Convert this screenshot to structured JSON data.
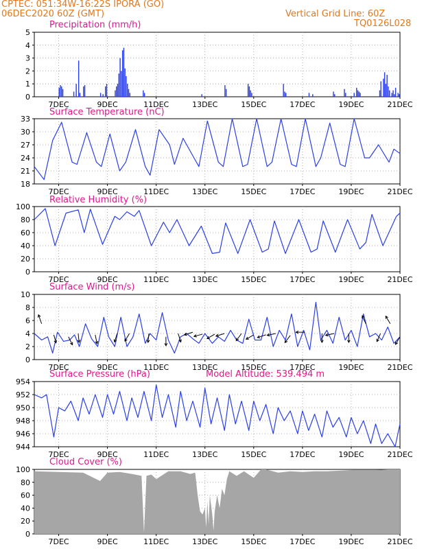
{
  "header": {
    "line1_left": "CPTEC:   051:34W-16:22S   IPORA (GO)",
    "line2_left": "06DEC2020 60Z (GMT)",
    "line1_right": "Vertical Grid Line: 60Z",
    "line2_right": "TQ0126L028"
  },
  "colors": {
    "header": "#e0781e",
    "title": "#e0188c",
    "series": "#2a3ee8",
    "cloud": "#a6a6a6",
    "grid": "#9a9a9a"
  },
  "x_axis": {
    "range_days": [
      6.0,
      21.0
    ],
    "tick_days": [
      7,
      9,
      11,
      13,
      15,
      17,
      19,
      21
    ],
    "tick_labels": [
      "7DEC",
      "9DEC",
      "11DEC",
      "13DEC",
      "15DEC",
      "17DEC",
      "19DEC",
      "21DEC"
    ]
  },
  "chart_data": [
    {
      "id": "precip",
      "type": "bar",
      "title": "Precipitation (mm/h)",
      "ylim": [
        0,
        5
      ],
      "yticks": [
        0,
        1,
        2,
        3,
        4,
        5
      ],
      "grid": true,
      "bars": [
        [
          7.02,
          0.7
        ],
        [
          7.07,
          0.9
        ],
        [
          7.12,
          0.8
        ],
        [
          7.17,
          0.6
        ],
        [
          7.62,
          0.4
        ],
        [
          7.72,
          1.0
        ],
        [
          7.82,
          2.8
        ],
        [
          7.87,
          0.3
        ],
        [
          8.02,
          0.8
        ],
        [
          8.07,
          0.9
        ],
        [
          8.72,
          0.3
        ],
        [
          8.82,
          0.2
        ],
        [
          8.92,
          0.8
        ],
        [
          8.97,
          1.0
        ],
        [
          9.32,
          0.5
        ],
        [
          9.37,
          0.8
        ],
        [
          9.42,
          1.0
        ],
        [
          9.47,
          1.8
        ],
        [
          9.52,
          3.0
        ],
        [
          9.57,
          2.0
        ],
        [
          9.62,
          3.6
        ],
        [
          9.67,
          3.8
        ],
        [
          9.72,
          2.2
        ],
        [
          9.77,
          1.6
        ],
        [
          9.82,
          1.0
        ],
        [
          9.87,
          0.6
        ],
        [
          9.92,
          0.3
        ],
        [
          10.47,
          0.5
        ],
        [
          10.52,
          0.3
        ],
        [
          12.87,
          0.2
        ],
        [
          13.82,
          0.9
        ],
        [
          13.87,
          0.6
        ],
        [
          14.77,
          1.0
        ],
        [
          14.82,
          0.8
        ],
        [
          14.87,
          0.5
        ],
        [
          14.92,
          0.3
        ],
        [
          16.22,
          1.0
        ],
        [
          16.27,
          0.4
        ],
        [
          16.32,
          0.3
        ],
        [
          17.27,
          0.3
        ],
        [
          17.42,
          0.2
        ],
        [
          18.27,
          0.4
        ],
        [
          18.32,
          0.2
        ],
        [
          18.72,
          0.6
        ],
        [
          18.77,
          0.3
        ],
        [
          19.12,
          0.3
        ],
        [
          19.22,
          0.7
        ],
        [
          19.27,
          0.5
        ],
        [
          19.32,
          0.4
        ],
        [
          19.37,
          0.3
        ],
        [
          20.17,
          0.5
        ],
        [
          20.22,
          1.2
        ],
        [
          20.32,
          1.4
        ],
        [
          20.37,
          1.9
        ],
        [
          20.42,
          1.0
        ],
        [
          20.47,
          1.7
        ],
        [
          20.52,
          0.8
        ],
        [
          20.57,
          0.5
        ],
        [
          20.67,
          0.3
        ],
        [
          20.72,
          0.5
        ],
        [
          20.77,
          0.2
        ],
        [
          20.82,
          0.7
        ],
        [
          20.92,
          0.3
        ],
        [
          20.97,
          0.2
        ]
      ]
    },
    {
      "id": "temp",
      "type": "line",
      "title": "Surface Temperature (nC)",
      "ylim": [
        18,
        33
      ],
      "yticks": [
        18,
        21,
        24,
        27,
        30,
        33
      ],
      "grid": true,
      "x": [
        6.0,
        6.4,
        6.75,
        7.12,
        7.55,
        7.75,
        8.15,
        8.55,
        8.75,
        9.1,
        9.5,
        9.75,
        10.15,
        10.55,
        10.75,
        11.12,
        11.55,
        11.75,
        12.1,
        12.55,
        12.75,
        13.1,
        13.55,
        13.75,
        14.12,
        14.55,
        14.75,
        15.12,
        15.55,
        15.75,
        16.12,
        16.55,
        16.75,
        17.12,
        17.55,
        17.75,
        18.12,
        18.55,
        18.75,
        19.12,
        19.55,
        19.75,
        20.12,
        20.55,
        20.75,
        21.0
      ],
      "y": [
        22,
        19.0,
        28,
        32.2,
        23,
        22.5,
        29.8,
        23,
        22,
        29.5,
        21,
        23,
        30.5,
        22,
        20,
        30.5,
        27,
        22.5,
        28.5,
        24,
        22,
        32.5,
        23,
        22,
        33,
        22,
        22.5,
        33,
        22,
        23,
        33,
        22.5,
        22,
        33,
        22,
        24,
        32,
        22.5,
        22,
        33,
        24,
        24,
        27,
        23,
        26,
        25
      ]
    },
    {
      "id": "rh",
      "type": "line",
      "title": "Relative Humidity (%)",
      "ylim": [
        0,
        100
      ],
      "yticks": [
        0,
        20,
        40,
        60,
        80,
        100
      ],
      "grid": true,
      "x": [
        6.0,
        6.45,
        6.85,
        7.3,
        7.8,
        8.05,
        8.3,
        8.8,
        9.3,
        9.5,
        9.8,
        10.1,
        10.3,
        10.8,
        11.3,
        11.55,
        11.85,
        12.35,
        12.85,
        13.3,
        13.6,
        13.85,
        14.35,
        14.85,
        15.35,
        15.6,
        15.85,
        16.3,
        16.85,
        17.35,
        17.6,
        17.85,
        18.35,
        18.85,
        19.35,
        19.6,
        19.85,
        20.3,
        20.85,
        21.0
      ],
      "y": [
        80,
        97,
        40,
        90,
        95,
        60,
        96,
        42,
        85,
        80,
        92,
        85,
        94,
        40,
        76,
        60,
        80,
        40,
        70,
        28,
        30,
        75,
        28,
        80,
        30,
        35,
        78,
        28,
        80,
        30,
        35,
        78,
        30,
        80,
        35,
        45,
        88,
        40,
        85,
        90
      ]
    },
    {
      "id": "wind",
      "type": "line",
      "title": "Surface Wind (m/s)",
      "ylim": [
        0,
        10
      ],
      "yticks": [
        0,
        2,
        4,
        6,
        8,
        10
      ],
      "grid": true,
      "x": [
        6.0,
        6.3,
        6.55,
        6.75,
        6.95,
        7.2,
        7.45,
        7.65,
        7.85,
        8.1,
        8.35,
        8.6,
        8.85,
        9.05,
        9.3,
        9.55,
        9.8,
        10.05,
        10.3,
        10.55,
        10.75,
        11.0,
        11.25,
        11.5,
        11.75,
        12.0,
        12.25,
        12.5,
        12.75,
        13.0,
        13.3,
        13.55,
        13.8,
        14.05,
        14.3,
        14.55,
        14.8,
        15.05,
        15.3,
        15.55,
        15.8,
        16.05,
        16.3,
        16.55,
        16.8,
        17.05,
        17.3,
        17.55,
        17.75,
        18.0,
        18.25,
        18.5,
        18.75,
        19.0,
        19.25,
        19.5,
        19.75,
        20.0,
        20.25,
        20.5,
        20.75,
        21.0
      ],
      "y": [
        4,
        3,
        3.5,
        1.0,
        4.2,
        2.8,
        3.0,
        3.8,
        2.0,
        5.5,
        3.2,
        2.0,
        6.5,
        3.5,
        2.0,
        6.5,
        2.0,
        3.5,
        7.0,
        2.5,
        4.0,
        3.0,
        7.2,
        3.0,
        1.0,
        3.5,
        4.0,
        3.2,
        2.5,
        4.0,
        2.5,
        3.5,
        2.8,
        4.5,
        3.0,
        2.5,
        6.2,
        3.0,
        3.0,
        6.5,
        2.0,
        4.5,
        3.0,
        7.0,
        2.0,
        4.5,
        1.5,
        8.8,
        3.0,
        4.5,
        2.5,
        6.5,
        3.0,
        4.5,
        2.0,
        7.0,
        3.5,
        4.0,
        3.0,
        5.0,
        2.5,
        3.5
      ]
    },
    {
      "id": "press",
      "type": "line",
      "title": "Surface Pressure (hPa)",
      "annotation": "Model Altitude: 539.494 m",
      "ylim": [
        944,
        954
      ],
      "yticks": [
        944,
        946,
        948,
        950,
        952,
        954
      ],
      "grid": true,
      "x": [
        6.0,
        6.3,
        6.5,
        6.8,
        7.0,
        7.25,
        7.5,
        7.8,
        8.0,
        8.25,
        8.5,
        8.8,
        9.0,
        9.25,
        9.5,
        9.8,
        10.0,
        10.25,
        10.5,
        10.8,
        11.0,
        11.25,
        11.5,
        11.8,
        12.0,
        12.25,
        12.5,
        12.8,
        13.0,
        13.25,
        13.5,
        13.8,
        14.0,
        14.25,
        14.5,
        14.8,
        15.0,
        15.25,
        15.5,
        15.8,
        16.0,
        16.25,
        16.5,
        16.8,
        17.0,
        17.25,
        17.5,
        17.8,
        18.0,
        18.25,
        18.5,
        18.8,
        19.0,
        19.25,
        19.5,
        19.8,
        20.0,
        20.25,
        20.5,
        20.8,
        21.0
      ],
      "y": [
        952,
        951.5,
        952,
        945.5,
        950,
        949.5,
        951,
        948,
        951.5,
        949,
        952,
        948.5,
        952,
        949,
        952.5,
        948,
        951.5,
        948.5,
        952.5,
        948,
        953.5,
        948.5,
        952,
        947,
        952.5,
        948,
        951,
        947,
        953,
        947.5,
        951.5,
        946.5,
        952,
        947.5,
        951,
        946.5,
        951,
        948,
        950.5,
        946,
        950,
        948,
        949.5,
        946,
        949.5,
        946.5,
        949,
        945.5,
        949.5,
        947,
        948.5,
        945.5,
        948.5,
        946,
        948,
        944.5,
        947.5,
        944.5,
        946,
        944,
        947.5
      ]
    },
    {
      "id": "cloud",
      "type": "area",
      "title": "Cloud Cover (%)",
      "ylim": [
        0,
        100
      ],
      "yticks": [
        0,
        20,
        40,
        60,
        80,
        100
      ],
      "grid": true,
      "x": [
        6.0,
        7.0,
        8.0,
        8.7,
        9.0,
        9.5,
        10.0,
        10.4,
        10.5,
        10.6,
        10.8,
        11.0,
        11.5,
        12.0,
        12.4,
        12.6,
        12.7,
        12.8,
        12.9,
        13.0,
        13.05,
        13.1,
        13.15,
        13.2,
        13.3,
        13.35,
        13.4,
        13.5,
        13.6,
        13.7,
        13.8,
        13.9,
        14.0,
        14.3,
        14.6,
        15.0,
        15.3,
        15.5,
        16.0,
        16.5,
        17.0,
        17.5,
        18.0,
        18.5,
        19.0,
        19.5,
        20.0,
        20.5,
        21.0
      ],
      "y": [
        97,
        96,
        95,
        82,
        95,
        96,
        93,
        90,
        2,
        90,
        92,
        85,
        97,
        97,
        93,
        95,
        60,
        35,
        30,
        40,
        10,
        50,
        15,
        60,
        30,
        5,
        35,
        60,
        40,
        70,
        60,
        85,
        97,
        90,
        97,
        87,
        100,
        100,
        95,
        97,
        96,
        97,
        97,
        98,
        99,
        99,
        99,
        100,
        100
      ]
    }
  ],
  "wind_arrows": [
    [
      6.3,
      5.5,
      -0.35,
      1.0
    ],
    [
      6.8,
      3.8,
      0.25,
      -0.9
    ],
    [
      7.4,
      3.5,
      0.45,
      -0.9
    ],
    [
      7.8,
      4.0,
      0.1,
      -1.0
    ],
    [
      8.5,
      3.8,
      0.2,
      -1.0
    ],
    [
      9.4,
      4.0,
      -0.3,
      -0.95
    ],
    [
      9.9,
      4.0,
      -0.5,
      -0.85
    ],
    [
      10.7,
      4.0,
      -0.1,
      -1.0
    ],
    [
      11.4,
      3.5,
      0.0,
      -1.0
    ],
    [
      11.9,
      4.0,
      0.3,
      -0.95
    ],
    [
      12.5,
      4.2,
      -0.95,
      -0.3
    ],
    [
      12.9,
      3.9,
      -0.95,
      -0.25
    ],
    [
      13.4,
      3.9,
      -0.85,
      -0.5
    ],
    [
      13.8,
      4.0,
      -0.95,
      -0.3
    ],
    [
      14.5,
      4.0,
      -0.6,
      -0.8
    ],
    [
      15.0,
      3.8,
      -0.85,
      -0.5
    ],
    [
      15.5,
      3.8,
      -0.95,
      -0.3
    ],
    [
      15.9,
      4.0,
      -0.95,
      -0.2
    ],
    [
      16.5,
      3.7,
      -0.6,
      -0.8
    ],
    [
      17.1,
      4.2,
      -1.0,
      0.0
    ],
    [
      17.8,
      4.0,
      0.0,
      -1.0
    ],
    [
      18.3,
      4.0,
      -0.95,
      -0.2
    ],
    [
      18.9,
      4.0,
      0.0,
      -1.0
    ],
    [
      19.6,
      5.5,
      -0.4,
      0.9
    ],
    [
      20.2,
      4.0,
      -0.4,
      -0.9
    ],
    [
      20.6,
      5.5,
      -0.5,
      0.85
    ],
    [
      21.0,
      3.5,
      -0.5,
      -0.85
    ]
  ]
}
